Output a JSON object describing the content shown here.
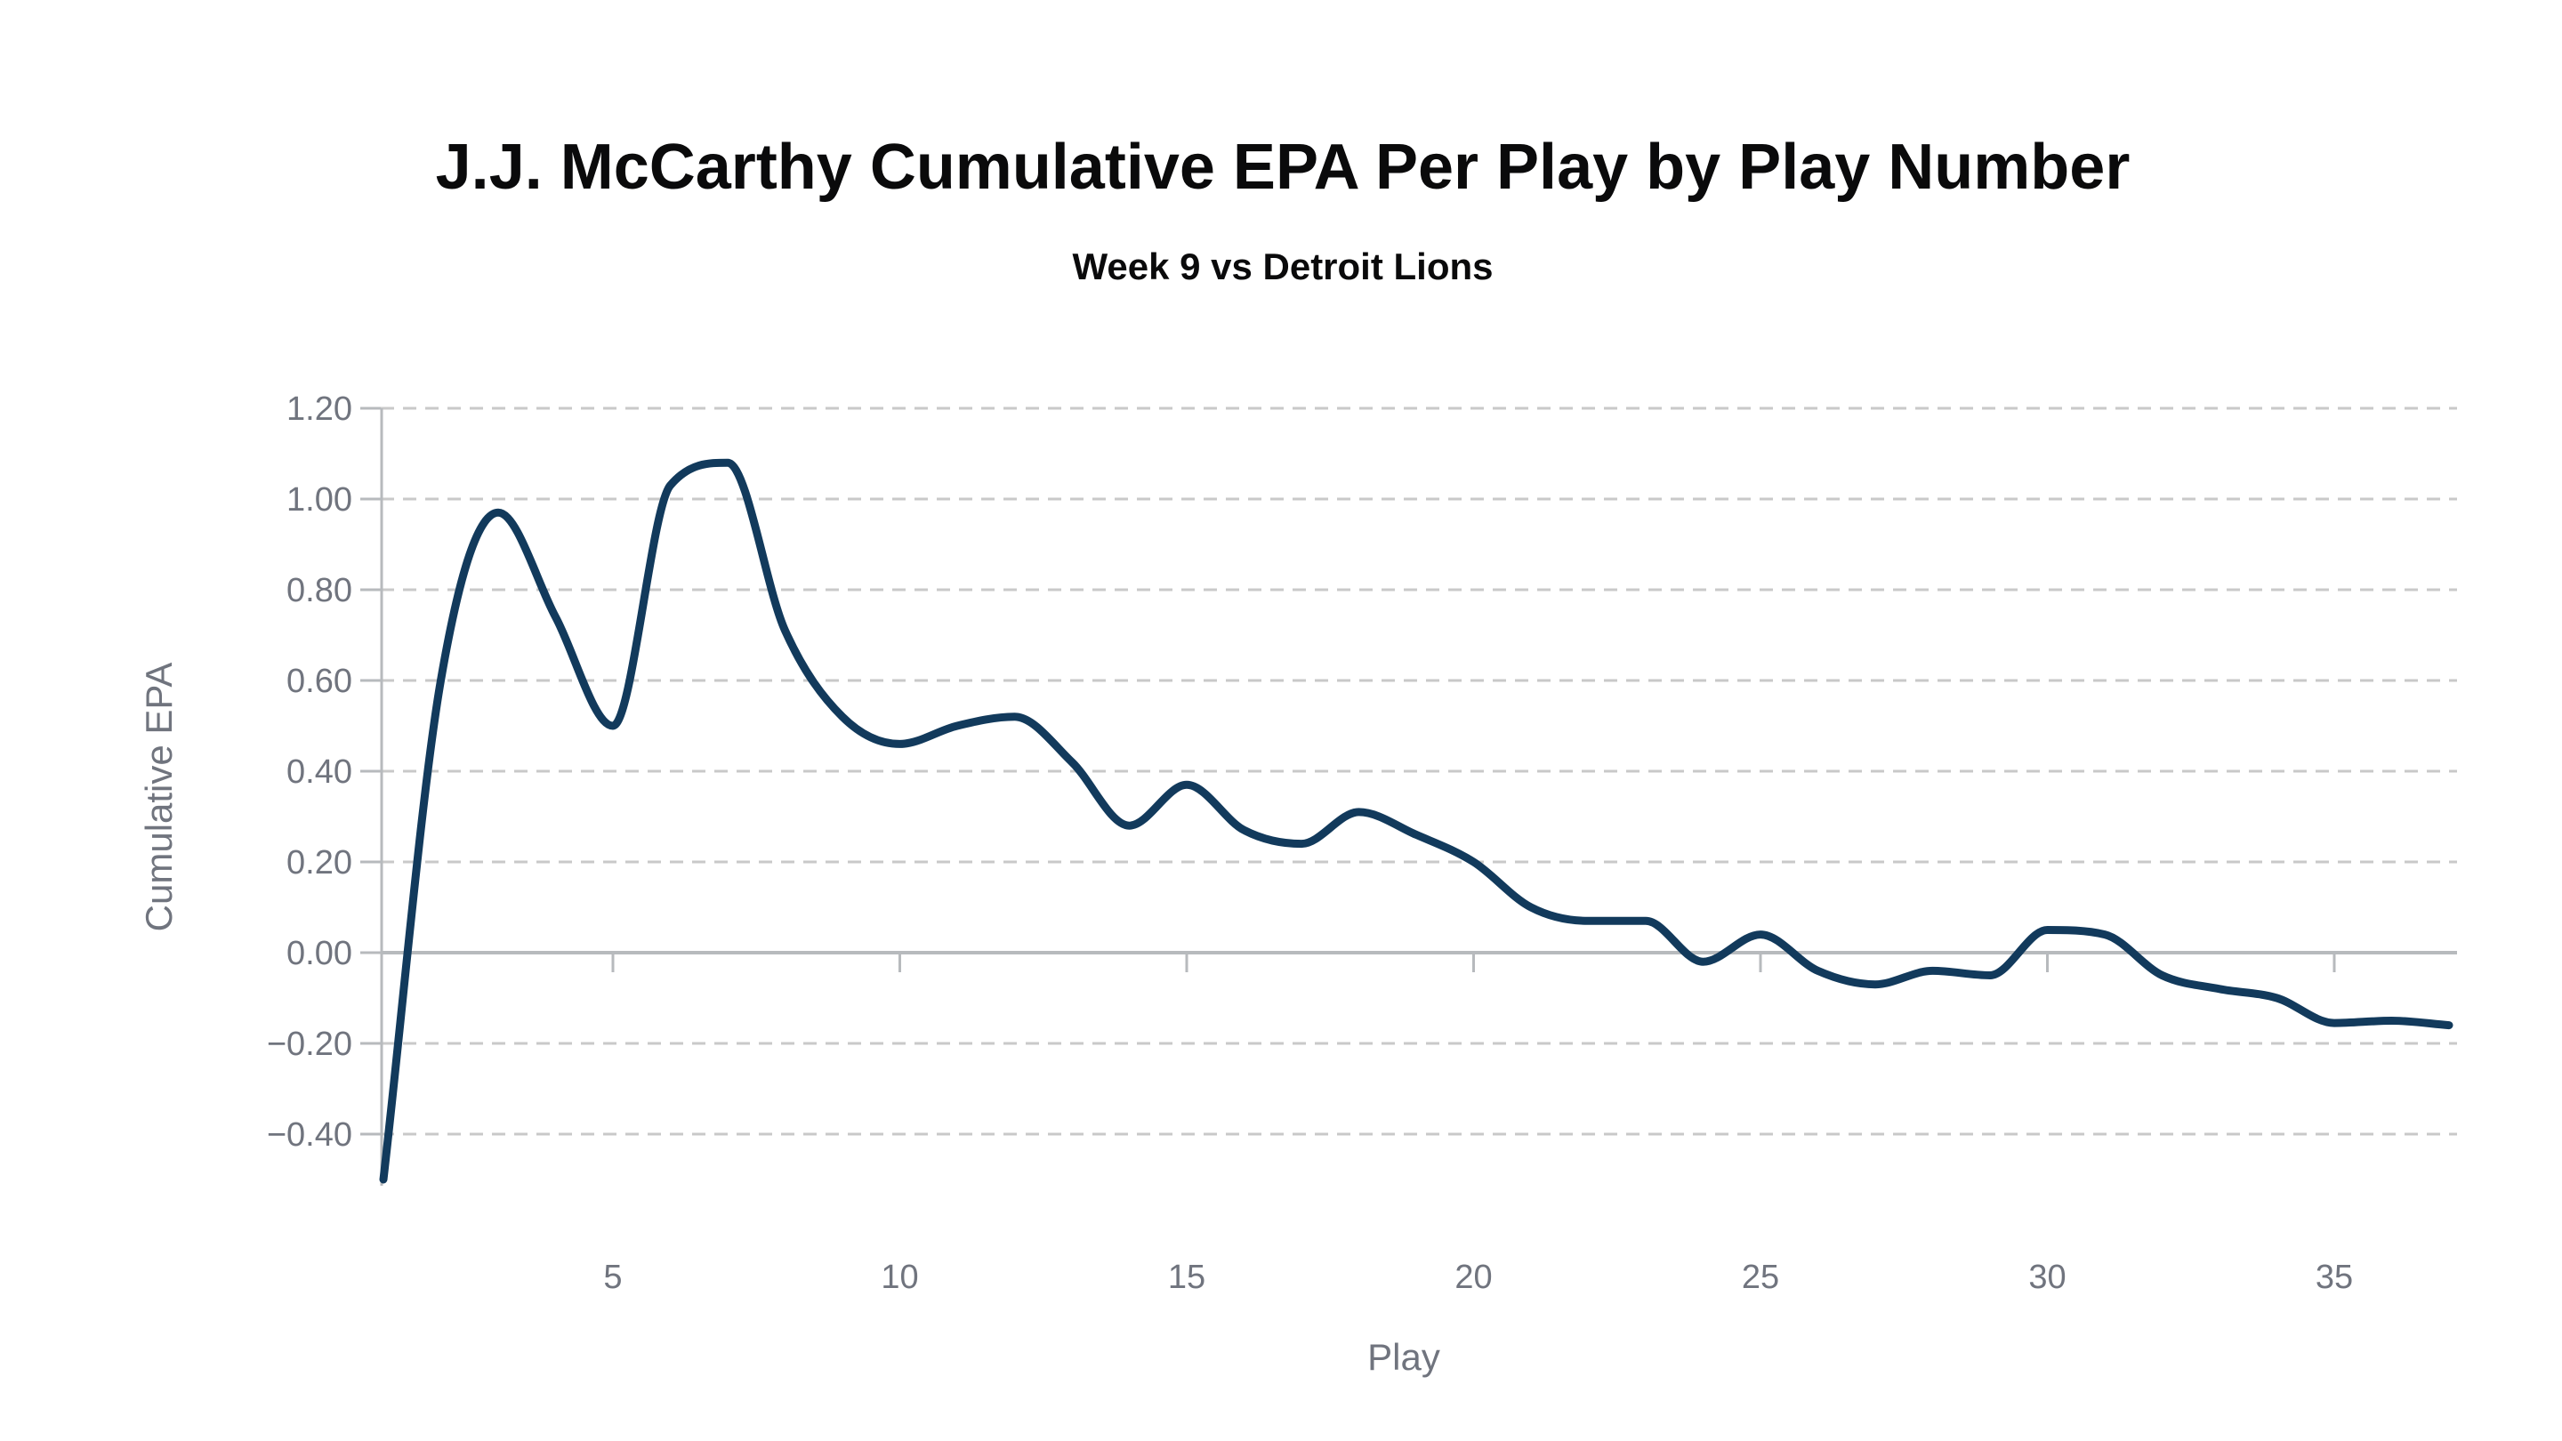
{
  "chart_data": {
    "type": "line",
    "title": "J.J. McCarthy Cumulative EPA Per Play by Play Number",
    "subtitle": "Week 9 vs Detroit Lions",
    "xlabel": "Play",
    "ylabel": "Cumulative EPA",
    "x": [
      1,
      2,
      3,
      4,
      5,
      6,
      7,
      8,
      9,
      10,
      11,
      12,
      13,
      14,
      15,
      16,
      17,
      18,
      19,
      20,
      21,
      22,
      23,
      24,
      25,
      26,
      27,
      28,
      29,
      30,
      31,
      32,
      33,
      34,
      35,
      36,
      37
    ],
    "values": [
      -0.5,
      0.6,
      0.97,
      0.74,
      0.5,
      1.03,
      1.08,
      0.71,
      0.52,
      0.46,
      0.5,
      0.52,
      0.42,
      0.28,
      0.37,
      0.27,
      0.24,
      0.31,
      0.26,
      0.2,
      0.1,
      0.07,
      0.07,
      -0.02,
      0.04,
      -0.04,
      -0.07,
      -0.04,
      -0.05,
      0.05,
      0.04,
      -0.05,
      -0.08,
      -0.1,
      -0.155,
      -0.15,
      -0.16
    ],
    "x_ticks": [
      5,
      10,
      15,
      20,
      25,
      30,
      35
    ],
    "y_ticks": [
      1.2,
      1.0,
      0.8,
      0.6,
      0.4,
      0.2,
      0.0,
      -0.2,
      -0.4
    ],
    "y_tick_labels": [
      "1.20",
      "1.00",
      "0.80",
      "0.60",
      "0.40",
      "0.20",
      "0.00",
      "−0.20",
      "−0.40"
    ],
    "xlim": [
      1,
      37
    ],
    "ylim": [
      -0.515,
      1.235
    ],
    "grid": "horizontal-dashed",
    "zero_line": "solid",
    "legend": "none",
    "smoothing": "monotone",
    "line_color": "#123a5c",
    "grid_color": "#c9c9c9",
    "axis_color": "#b7babd",
    "label_color": "#70747e",
    "title_color": "#0a0a0b",
    "background_color": "#ffffff"
  }
}
